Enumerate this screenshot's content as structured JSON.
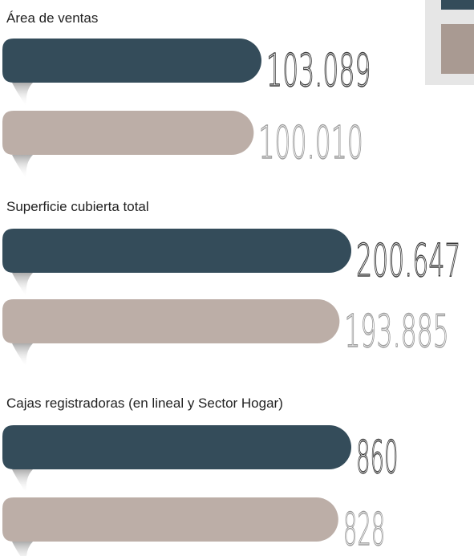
{
  "chart_data": [
    {
      "type": "bar",
      "title": "Área de ventas",
      "values": [
        103089,
        100010
      ],
      "value_labels": [
        "103.089",
        "100.010"
      ],
      "colors": [
        "#344c5a",
        "#bcaea7"
      ]
    },
    {
      "type": "bar",
      "title": "Superficie cubierta total",
      "values": [
        200647,
        193885
      ],
      "value_labels": [
        "200.647",
        "193.885"
      ],
      "colors": [
        "#344c5a",
        "#bcaea7"
      ]
    },
    {
      "type": "bar",
      "title": "Cajas registradoras  (en lineal y Sector Hogar)",
      "values": [
        860,
        828
      ],
      "value_labels": [
        "860",
        "828"
      ],
      "colors": [
        "#344c5a",
        "#bcaea7"
      ]
    }
  ]
}
